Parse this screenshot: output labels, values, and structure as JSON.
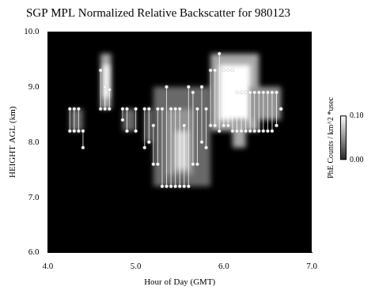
{
  "chart_data": {
    "type": "heatmap",
    "title": "SGP MPL Normalized Relative Backscatter for 980123",
    "x_label": "Hour of Day (GMT)",
    "y_label": "HEIGHT AGL (km)",
    "xlim": [
      4.0,
      7.0
    ],
    "xticks": [
      {
        "value": 4,
        "label": "4.0"
      },
      {
        "value": 5,
        "label": "5.0"
      },
      {
        "value": 6,
        "label": "6.0"
      },
      {
        "value": 7,
        "label": "7.0"
      }
    ],
    "ylim": [
      6.0,
      10.0
    ],
    "yticks": [
      {
        "value": 6,
        "label": "6.0"
      },
      {
        "value": 7,
        "label": "7.0"
      },
      {
        "value": 8,
        "label": "8.0"
      },
      {
        "value": 9,
        "label": "9.0"
      },
      {
        "value": 10,
        "label": "10.0"
      }
    ],
    "grid": false,
    "patches": [
      {
        "x0": 4.25,
        "x1": 4.4,
        "y0": 8.2,
        "y1": 8.6,
        "value": 0.03
      },
      {
        "x0": 4.6,
        "x1": 4.72,
        "y0": 8.6,
        "y1": 9.6,
        "value": 0.06
      },
      {
        "x0": 4.63,
        "x1": 4.7,
        "y0": 8.8,
        "y1": 9.4,
        "value": 0.1
      },
      {
        "x0": 4.85,
        "x1": 5.0,
        "y0": 8.2,
        "y1": 8.6,
        "value": 0.03
      },
      {
        "x0": 5.1,
        "x1": 5.2,
        "y0": 8.0,
        "y1": 8.6,
        "value": 0.03
      },
      {
        "x0": 5.2,
        "x1": 5.85,
        "y0": 7.2,
        "y1": 9.0,
        "value": 0.03
      },
      {
        "x0": 5.35,
        "x1": 5.65,
        "y0": 7.4,
        "y1": 8.6,
        "value": 0.05
      },
      {
        "x0": 5.45,
        "x1": 5.6,
        "y0": 7.5,
        "y1": 8.2,
        "value": 0.08
      },
      {
        "x0": 5.85,
        "x1": 6.4,
        "y0": 8.2,
        "y1": 9.6,
        "value": 0.06
      },
      {
        "x0": 5.95,
        "x1": 6.3,
        "y0": 8.4,
        "y1": 9.4,
        "value": 0.1
      },
      {
        "x0": 6.3,
        "x1": 6.65,
        "y0": 8.4,
        "y1": 9.0,
        "value": 0.05
      },
      {
        "x0": 6.1,
        "x1": 6.25,
        "y0": 7.9,
        "y1": 8.4,
        "value": 0.06
      }
    ],
    "layers": {
      "color": "#ffffff",
      "marker": "circle",
      "x": [
        4.25,
        4.3,
        4.35,
        4.4,
        4.6,
        4.65,
        4.7,
        4.85,
        4.9,
        5.0,
        5.1,
        5.15,
        5.2,
        5.25,
        5.3,
        5.35,
        5.4,
        5.45,
        5.5,
        5.55,
        5.6,
        5.65,
        5.7,
        5.75,
        5.8,
        5.85,
        5.9,
        5.95,
        6.0,
        6.05,
        6.1,
        6.15,
        6.2,
        6.25,
        6.3,
        6.35,
        6.4,
        6.45,
        6.5,
        6.55,
        6.6,
        6.65
      ],
      "base": [
        8.2,
        8.2,
        8.2,
        7.9,
        8.6,
        8.6,
        8.6,
        8.4,
        8.2,
        8.2,
        7.9,
        8.0,
        7.6,
        7.6,
        7.2,
        7.2,
        7.2,
        7.2,
        7.2,
        7.2,
        7.2,
        7.6,
        7.6,
        8.0,
        7.9,
        8.3,
        8.3,
        8.2,
        8.3,
        8.3,
        8.2,
        8.2,
        8.2,
        8.2,
        8.2,
        8.2,
        8.2,
        8.2,
        8.2,
        8.2,
        8.3,
        8.6
      ],
      "top": [
        8.6,
        8.6,
        8.6,
        8.2,
        9.3,
        9.0,
        8.95,
        8.6,
        8.6,
        8.6,
        8.6,
        8.6,
        8.3,
        8.6,
        8.6,
        9.0,
        8.6,
        8.6,
        8.6,
        8.3,
        9.0,
        8.9,
        8.6,
        9.0,
        8.6,
        9.3,
        9.3,
        9.6,
        9.3,
        9.3,
        9.3,
        8.9,
        8.9,
        8.9,
        8.9,
        8.9,
        8.9,
        8.9,
        8.9,
        8.9,
        8.9,
        8.6
      ]
    },
    "color_bar": {
      "label": "PhE Counts / km^2 *usec",
      "range": [
        0.0,
        0.1
      ],
      "ticks": [
        {
          "value": 0.0,
          "label": "0.00"
        },
        {
          "value": 0.1,
          "label": "0.10"
        }
      ]
    }
  }
}
